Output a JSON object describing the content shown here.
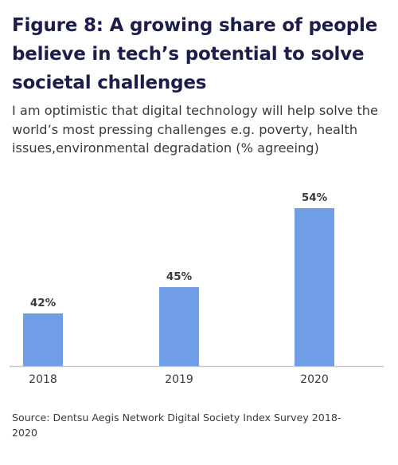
{
  "figure": {
    "title": "Figure 8: A growing share of people believe in tech’s potential to solve societal challenges",
    "subtitle": "I am optimistic that digital technology will help solve the world’s most pressing challenges e.g. poverty, health issues,environmental degradation (% agreeing)",
    "source": "Source: Dentsu Aegis Network Digital Society Index Survey 2018-2020"
  },
  "colors": {
    "bar": "#6f9ee6",
    "axis": "#c8c8c8",
    "title": "#1b1e4b",
    "text": "#3a3a3a"
  },
  "chart_data": {
    "type": "bar",
    "categories": [
      "2018",
      "2019",
      "2020"
    ],
    "values": [
      42,
      45,
      54
    ],
    "value_labels": [
      "42%",
      "45%",
      "54%"
    ],
    "title": "",
    "xlabel": "",
    "ylabel": "",
    "ylim": [
      36,
      55
    ],
    "grid": false,
    "legend": "none"
  }
}
